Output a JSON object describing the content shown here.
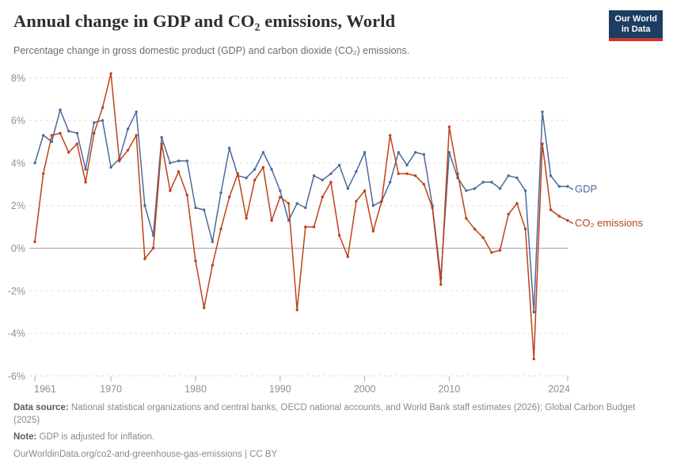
{
  "header": {
    "logo": {
      "line1": "Our World",
      "line2": "in Data",
      "bg": "#1D3D63",
      "bar": "#D0342C"
    }
  },
  "footer": {
    "data_source_label": "Data source:",
    "data_source": "National statistical organizations and central banks, OECD national accounts, and World Bank staff estimates (2026); Global Carbon Budget (2025)",
    "note_label": "Note:",
    "note": "GDP is adjusted for inflation.",
    "url": "OurWorldinData.org/co2-and-greenhouse-gas-emissions | CC BY"
  },
  "chart_data": {
    "type": "line",
    "title": "Annual change in GDP and CO₂ emissions, World",
    "subtitle": "Percentage change in gross domestic product (GDP) and carbon dioxide (CO₂) emissions.",
    "x": [
      1961,
      1962,
      1963,
      1964,
      1965,
      1966,
      1967,
      1968,
      1969,
      1970,
      1971,
      1972,
      1973,
      1974,
      1975,
      1976,
      1977,
      1978,
      1979,
      1980,
      1981,
      1982,
      1983,
      1984,
      1985,
      1986,
      1987,
      1988,
      1989,
      1990,
      1991,
      1992,
      1993,
      1994,
      1995,
      1996,
      1997,
      1998,
      1999,
      2000,
      2001,
      2002,
      2003,
      2004,
      2005,
      2006,
      2007,
      2008,
      2009,
      2010,
      2011,
      2012,
      2013,
      2014,
      2015,
      2016,
      2017,
      2018,
      2019,
      2020,
      2021,
      2022,
      2023,
      2024
    ],
    "series": [
      {
        "id": "gdp",
        "name": "GDP",
        "color": "#4C6A9C",
        "values": [
          4.0,
          5.3,
          5.0,
          6.5,
          5.5,
          5.4,
          3.7,
          5.9,
          6.0,
          3.8,
          4.2,
          5.6,
          6.4,
          2.0,
          0.6,
          5.2,
          4.0,
          4.1,
          4.1,
          1.9,
          1.8,
          0.3,
          2.6,
          4.7,
          3.4,
          3.3,
          3.7,
          4.5,
          3.7,
          2.7,
          1.3,
          2.1,
          1.9,
          3.4,
          3.2,
          3.5,
          3.9,
          2.8,
          3.6,
          4.5,
          2.0,
          2.2,
          3.1,
          4.5,
          3.9,
          4.5,
          4.4,
          2.0,
          -1.4,
          4.5,
          3.3,
          2.7,
          2.8,
          3.1,
          3.1,
          2.8,
          3.4,
          3.3,
          2.7,
          -3.0,
          6.4,
          3.4,
          2.9,
          2.9
        ]
      },
      {
        "id": "co2",
        "name": "CO₂ emissions",
        "color": "#BE4119",
        "values": [
          0.3,
          3.5,
          5.3,
          5.4,
          4.5,
          4.9,
          3.1,
          5.4,
          6.6,
          8.2,
          4.1,
          4.6,
          5.3,
          -0.5,
          0.0,
          4.9,
          2.7,
          3.6,
          2.5,
          -0.6,
          -2.8,
          -0.8,
          0.9,
          2.4,
          3.5,
          1.4,
          3.2,
          3.8,
          1.3,
          2.4,
          2.1,
          -2.9,
          1.0,
          1.0,
          2.4,
          3.1,
          0.6,
          -0.4,
          2.2,
          2.7,
          0.8,
          2.2,
          5.3,
          3.5,
          3.5,
          3.4,
          3.0,
          1.9,
          -1.7,
          5.7,
          3.5,
          1.4,
          0.9,
          0.5,
          -0.2,
          -0.1,
          1.6,
          2.1,
          0.9,
          -5.2,
          4.9,
          1.8,
          1.5,
          1.3
        ]
      }
    ],
    "y_ticks": [
      8,
      6,
      4,
      2,
      0,
      -2,
      -4,
      -6
    ],
    "y_tick_suffix": "%",
    "x_ticks": [
      1961,
      1970,
      1980,
      1990,
      2000,
      2010,
      2024
    ],
    "ylim": [
      -6,
      8
    ],
    "grid": "horizontal dashed gridlines, solid line at zero",
    "legend_position": "labels at right end of each line",
    "markers": true
  }
}
